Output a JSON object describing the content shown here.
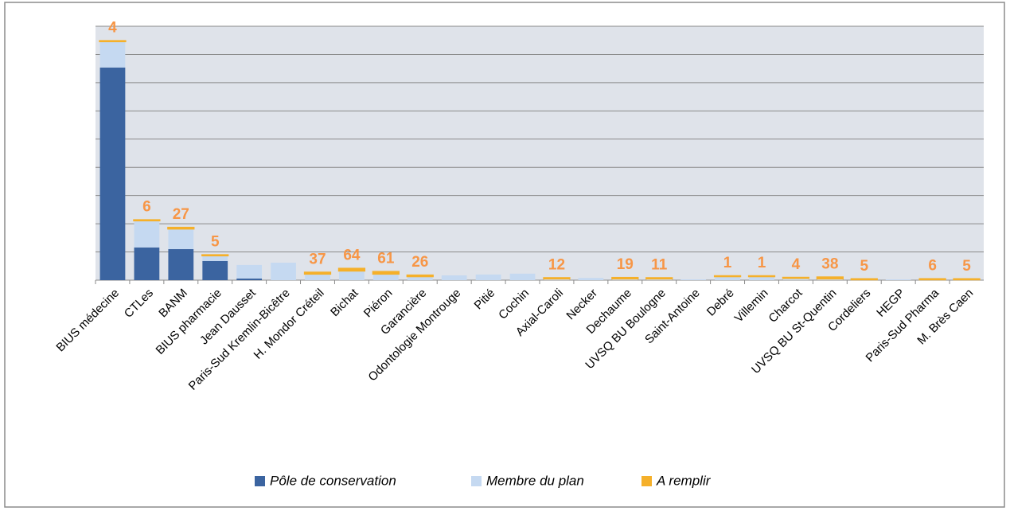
{
  "chart_data": {
    "type": "stacked_bar",
    "categories": [
      "BIUS médecine",
      "CTLes",
      "BANM",
      "BIUS pharmacie",
      "Jean Dausset",
      "Paris-Sud Kremlin-Bicêtre",
      "H. Mondor Créteil",
      "Bichat",
      "Piéron",
      "Garancière",
      "Odontologie Montrouge",
      "Pitié",
      "Cochin",
      "Axial-Caroli",
      "Necker",
      "Dechaume",
      "UVSQ BU Boulogne",
      "Saint-Antoine",
      "Debré",
      "Villemin",
      "Charcot",
      "UVSQ BU St-Quentin",
      "Cordeliers",
      "HEGP",
      "Paris-Sud Pharma",
      "M. Brès Caen"
    ],
    "series": [
      {
        "name": "Pôle de conservation",
        "color": "#3b64a0",
        "values": [
          7540,
          1160,
          1100,
          680,
          60,
          0,
          0,
          0,
          0,
          0,
          0,
          0,
          0,
          0,
          0,
          0,
          0,
          0,
          0,
          0,
          0,
          0,
          0,
          0,
          0,
          0
        ]
      },
      {
        "name": "Membre du plan",
        "color": "#c5d9f1",
        "values": [
          930,
          960,
          730,
          200,
          480,
          620,
          230,
          340,
          230,
          140,
          170,
          200,
          230,
          60,
          80,
          60,
          60,
          30,
          140,
          140,
          80,
          60,
          30,
          30,
          30,
          30
        ]
      },
      {
        "name": "A remplir",
        "color": "#f5b02a",
        "values": [
          4,
          6,
          27,
          5,
          null,
          null,
          37,
          64,
          61,
          26,
          null,
          null,
          null,
          12,
          null,
          19,
          11,
          null,
          1,
          1,
          4,
          38,
          5,
          null,
          6,
          5
        ]
      }
    ],
    "ylim": [
      0,
      9000
    ],
    "yticks": [
      0,
      1000,
      2000,
      3000,
      4000,
      5000,
      6000,
      7000,
      8000,
      9000
    ],
    "grid": true,
    "legend": "bottom"
  }
}
